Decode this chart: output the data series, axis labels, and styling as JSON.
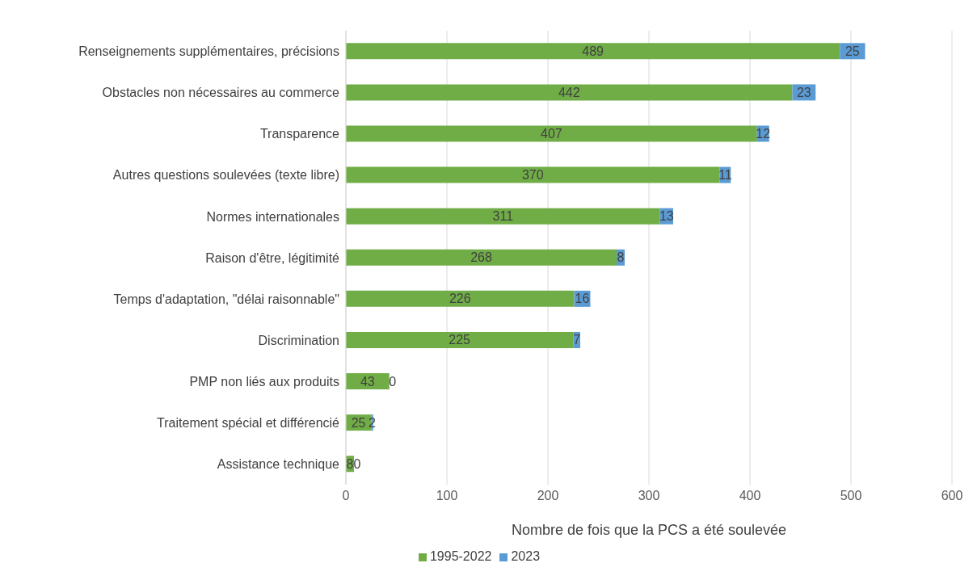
{
  "chart_data": {
    "type": "bar",
    "orientation": "horizontal",
    "stacked": true,
    "xlabel": "Nombre de fois que la PCS a été soulevée",
    "categories": [
      "Renseignements supplémentaires, précisions",
      "Obstacles non nécessaires au commerce",
      "Transparence",
      "Autres questions soulevées (texte libre)",
      "Normes internationales",
      "Raison d'être, légitimité",
      "Temps d'adaptation, \"délai raisonnable\"",
      "Discrimination",
      "PMP non liés aux produits",
      "Traitement spécial et différencié",
      "Assistance technique"
    ],
    "series": [
      {
        "name": "1995-2022",
        "color": "#70ad47",
        "values": [
          489,
          442,
          407,
          370,
          311,
          268,
          226,
          225,
          43,
          25,
          8
        ]
      },
      {
        "name": "2023",
        "color": "#5b9bd5",
        "values": [
          25,
          23,
          12,
          11,
          13,
          8,
          16,
          7,
          0,
          2,
          0
        ]
      }
    ],
    "xlim": [
      0,
      600
    ],
    "xticks": [
      0,
      100,
      200,
      300,
      400,
      500,
      600
    ],
    "grid": "x",
    "legend": "bottom",
    "data_labels": true
  }
}
